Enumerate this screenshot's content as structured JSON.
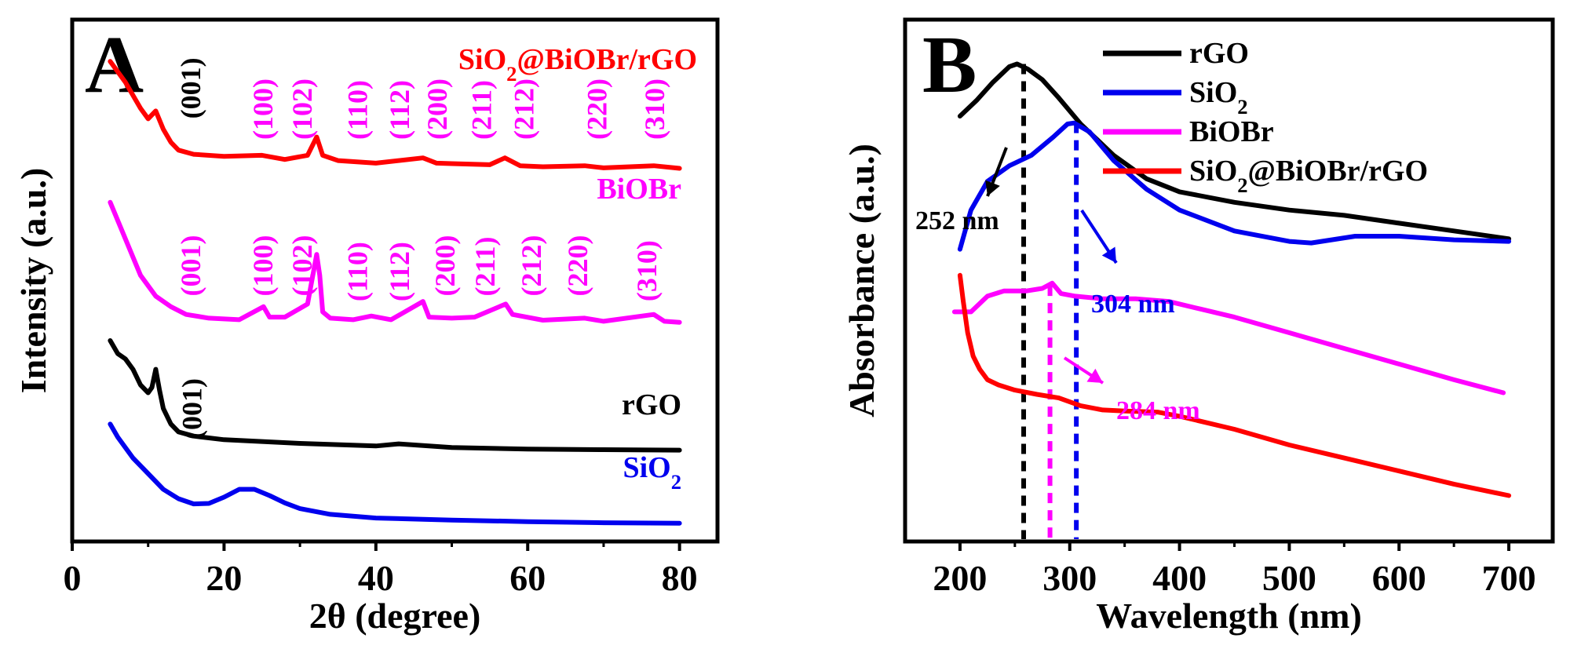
{
  "chart_data": [
    {
      "type": "line",
      "panel_label": "A",
      "xlabel": "2θ (degree)",
      "ylabel": "Intensity (a.u.)",
      "xlim": [
        0,
        85
      ],
      "ylim": [
        0,
        10
      ],
      "xticks": [
        "0",
        "20",
        "40",
        "60",
        "80"
      ],
      "series": [
        {
          "name": "SiO2",
          "label_main": "SiO",
          "label_sub": "2",
          "label_tail": "",
          "color": "#0000ee",
          "x": [
            5,
            6,
            8,
            10,
            12,
            14,
            16,
            18,
            20,
            22,
            24,
            26,
            28,
            30,
            34,
            40,
            50,
            60,
            70,
            80
          ],
          "y": [
            2.25,
            2.0,
            1.6,
            1.3,
            1.0,
            0.82,
            0.72,
            0.73,
            0.85,
            1.0,
            1.0,
            0.88,
            0.74,
            0.63,
            0.52,
            0.45,
            0.41,
            0.38,
            0.36,
            0.35
          ]
        },
        {
          "name": "rGO",
          "label_main": "rGO",
          "label_sub": "",
          "label_tail": "",
          "color": "#000000",
          "x": [
            5,
            6,
            7,
            8,
            9,
            10,
            10.5,
            11,
            11.5,
            12,
            13,
            14,
            16,
            20,
            30,
            40,
            43,
            50,
            60,
            70,
            80
          ],
          "y": [
            3.85,
            3.6,
            3.5,
            3.3,
            3.0,
            2.85,
            2.95,
            3.3,
            2.9,
            2.55,
            2.25,
            2.1,
            2.02,
            1.95,
            1.88,
            1.83,
            1.87,
            1.8,
            1.77,
            1.76,
            1.75
          ],
          "annotation": "(001)",
          "annotation_x": 17
        },
        {
          "name": "BiOBr",
          "label_main": "BiOBr",
          "label_sub": "",
          "label_tail": "",
          "color": "#ff00ff",
          "x": [
            5,
            7,
            9,
            11,
            13,
            15,
            18,
            22,
            25.2,
            26,
            28,
            31,
            32.2,
            32.6,
            33,
            34,
            37,
            39.4,
            42,
            46.2,
            47,
            50,
            53,
            57.1,
            58,
            62,
            67.5,
            70,
            76.6,
            78,
            80
          ],
          "y": [
            6.5,
            5.8,
            5.1,
            4.7,
            4.5,
            4.35,
            4.28,
            4.25,
            4.5,
            4.3,
            4.3,
            4.55,
            5.5,
            5.1,
            4.4,
            4.28,
            4.25,
            4.32,
            4.25,
            4.6,
            4.3,
            4.28,
            4.3,
            4.55,
            4.35,
            4.24,
            4.28,
            4.22,
            4.35,
            4.22,
            4.2
          ]
        },
        {
          "name": "SiO2@BiOBr/rGO",
          "label_main": "SiO",
          "label_sub": "2",
          "label_tail": "@BiOBr/rGO",
          "color": "#ff0000",
          "x": [
            5,
            7,
            9,
            10,
            11,
            12,
            13,
            14,
            16,
            20,
            25,
            28,
            31,
            32.2,
            33,
            35,
            40,
            46.2,
            48,
            50,
            55,
            57,
            59,
            62,
            67.5,
            70,
            76.6,
            80
          ],
          "y": [
            9.2,
            8.8,
            8.3,
            8.1,
            8.25,
            7.9,
            7.65,
            7.5,
            7.42,
            7.38,
            7.4,
            7.32,
            7.4,
            7.75,
            7.4,
            7.3,
            7.25,
            7.35,
            7.25,
            7.24,
            7.22,
            7.35,
            7.2,
            7.18,
            7.2,
            7.16,
            7.2,
            7.15
          ]
        }
      ],
      "peak_labels": [
        {
          "text": "(001)",
          "x": 15.5,
          "y": 8.1,
          "color": "#000000"
        },
        {
          "text": "(100)",
          "x": 25,
          "y": 7.7,
          "color": "#ff00ff"
        },
        {
          "text": "(102)",
          "x": 30.2,
          "y": 7.7,
          "color": "#ff00ff"
        },
        {
          "text": "(110)",
          "x": 37.5,
          "y": 7.7,
          "color": "#ff00ff"
        },
        {
          "text": "(112)",
          "x": 43,
          "y": 7.7,
          "color": "#ff00ff"
        },
        {
          "text": "(200)",
          "x": 48,
          "y": 7.7,
          "color": "#ff00ff"
        },
        {
          "text": "(211)",
          "x": 53.8,
          "y": 7.7,
          "color": "#ff00ff"
        },
        {
          "text": "(212)",
          "x": 59.4,
          "y": 7.7,
          "color": "#ff00ff"
        },
        {
          "text": "(220)",
          "x": 69,
          "y": 7.7,
          "color": "#ff00ff"
        },
        {
          "text": "(310)",
          "x": 76.6,
          "y": 7.7,
          "color": "#ff00ff"
        },
        {
          "text": "(001)",
          "x": 15.5,
          "y": 4.7,
          "color": "#ff00ff"
        },
        {
          "text": "(100)",
          "x": 25,
          "y": 4.7,
          "color": "#ff00ff"
        },
        {
          "text": "(102)",
          "x": 30.2,
          "y": 4.7,
          "color": "#ff00ff"
        },
        {
          "text": "(110)",
          "x": 37.5,
          "y": 4.6,
          "color": "#ff00ff"
        },
        {
          "text": "(112)",
          "x": 43,
          "y": 4.6,
          "color": "#ff00ff"
        },
        {
          "text": "(200)",
          "x": 49,
          "y": 4.7,
          "color": "#ff00ff"
        },
        {
          "text": "(211)",
          "x": 54.3,
          "y": 4.7,
          "color": "#ff00ff"
        },
        {
          "text": "(212)",
          "x": 60.4,
          "y": 4.7,
          "color": "#ff00ff"
        },
        {
          "text": "(220)",
          "x": 66.5,
          "y": 4.7,
          "color": "#ff00ff"
        },
        {
          "text": "(310)",
          "x": 75.6,
          "y": 4.6,
          "color": "#ff00ff"
        }
      ]
    },
    {
      "type": "line",
      "panel_label": "B",
      "xlabel": "Wavelength (nm)",
      "ylabel": "Absorbance (a.u.)",
      "xlim": [
        150,
        740
      ],
      "ylim": [
        0,
        10
      ],
      "xticks": [
        "200",
        "300",
        "400",
        "500",
        "600",
        "700"
      ],
      "series": [
        {
          "name": "rGO",
          "label_main": "rGO",
          "label_sub": "",
          "label_tail": "",
          "color": "#000000",
          "x": [
            200,
            215,
            230,
            245,
            252,
            262,
            275,
            290,
            310,
            340,
            370,
            400,
            450,
            500,
            550,
            600,
            650,
            700
          ],
          "y": [
            8.15,
            8.45,
            8.8,
            9.1,
            9.15,
            9.05,
            8.85,
            8.5,
            8.0,
            7.4,
            6.95,
            6.7,
            6.5,
            6.35,
            6.25,
            6.1,
            5.95,
            5.8
          ],
          "peak": 252,
          "peak_label": "252 nm"
        },
        {
          "name": "SiO2",
          "label_main": "SiO",
          "label_sub": "2",
          "label_tail": "",
          "color": "#0000ee",
          "x": [
            200,
            210,
            225,
            245,
            265,
            285,
            298,
            304,
            318,
            340,
            370,
            400,
            450,
            500,
            520,
            560,
            600,
            650,
            700
          ],
          "y": [
            5.6,
            6.35,
            6.9,
            7.2,
            7.4,
            7.75,
            8.0,
            8.02,
            7.85,
            7.3,
            6.75,
            6.35,
            5.95,
            5.75,
            5.72,
            5.85,
            5.85,
            5.78,
            5.75
          ],
          "peak": 304,
          "peak_label": "304 nm"
        },
        {
          "name": "BiOBr",
          "label_main": "BiOBr",
          "label_sub": "",
          "label_tail": "",
          "color": "#ff00ff",
          "x": [
            195,
            210,
            225,
            240,
            260,
            275,
            284,
            292,
            305,
            330,
            360,
            390,
            420,
            450,
            500,
            550,
            600,
            650,
            695
          ],
          "y": [
            4.4,
            4.4,
            4.7,
            4.8,
            4.8,
            4.85,
            4.95,
            4.75,
            4.7,
            4.65,
            4.65,
            4.6,
            4.45,
            4.3,
            4.0,
            3.7,
            3.4,
            3.1,
            2.85
          ],
          "peak": 284,
          "peak_label": "284 nm"
        },
        {
          "name": "SiO2@BiOBr/rGO",
          "label_main": "SiO",
          "label_sub": "2",
          "label_tail": "@BiOBr/rGO",
          "color": "#ff0000",
          "x": [
            200,
            203,
            207,
            212,
            218,
            225,
            235,
            250,
            270,
            290,
            310,
            330,
            350,
            380,
            400,
            450,
            500,
            550,
            600,
            650,
            700
          ],
          "y": [
            5.1,
            4.6,
            4.0,
            3.55,
            3.3,
            3.1,
            3.0,
            2.9,
            2.82,
            2.75,
            2.6,
            2.52,
            2.5,
            2.48,
            2.4,
            2.15,
            1.85,
            1.6,
            1.35,
            1.1,
            0.88
          ]
        }
      ],
      "dashed_markers": [
        {
          "x": 258,
          "color": "#000000"
        },
        {
          "x": 282,
          "color": "#ff00ff"
        },
        {
          "x": 306,
          "color": "#0000ee"
        }
      ]
    }
  ]
}
